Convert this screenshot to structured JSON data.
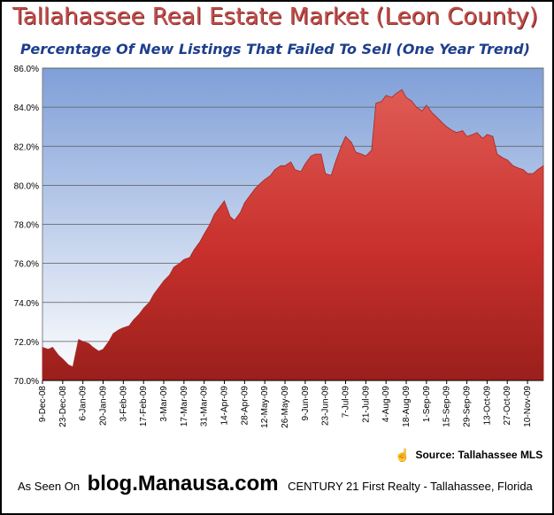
{
  "title": "Tallahassee Real Estate Market (Leon County)",
  "subtitle": "Percentage Of New Listings That Failed To Sell (One Year Trend)",
  "source": {
    "icon": "hand-pointer-icon",
    "text": "Source: Tallahassee MLS"
  },
  "footer": {
    "as_seen": "As Seen On",
    "blog": "blog.Manausa.com",
    "company": "CENTURY 21 First Realty - Tallahassee, Florida"
  },
  "colors": {
    "title": "#c0504d",
    "subtitle": "#1f3e8c",
    "area": "#c8302c",
    "plot_top": "#7f9fd8",
    "plot_bottom": "#ffffff"
  },
  "chart_data": {
    "type": "area",
    "title": "Percentage Of New Listings That Failed To Sell (One Year Trend)",
    "xlabel": "",
    "ylabel": "",
    "ylim": [
      70,
      86
    ],
    "y_ticks": [
      "70.0%",
      "72.0%",
      "74.0%",
      "76.0%",
      "78.0%",
      "80.0%",
      "82.0%",
      "84.0%",
      "86.0%"
    ],
    "grid": true,
    "legend": "none",
    "x_tick_labels": [
      "9-Dec-08",
      "23-Dec-08",
      "6-Jan-09",
      "20-Jan-09",
      "3-Feb-09",
      "17-Feb-09",
      "3-Mar-09",
      "17-Mar-09",
      "31-Mar-09",
      "14-Apr-09",
      "28-Apr-09",
      "12-May-09",
      "26-May-09",
      "9-Jun-09",
      "23-Jun-09",
      "7-Jul-09",
      "21-Jul-09",
      "4-Aug-09",
      "18-Aug-09",
      "1-Sep-09",
      "15-Sep-09",
      "29-Sep-09",
      "13-Oct-09",
      "27-Oct-09",
      "10-Nov-09"
    ],
    "x": [
      "2008-12-09",
      "2008-12-13",
      "2008-12-16",
      "2008-12-20",
      "2008-12-23",
      "2008-12-27",
      "2008-12-30",
      "2009-01-03",
      "2009-01-06",
      "2009-01-10",
      "2009-01-13",
      "2009-01-17",
      "2009-01-20",
      "2009-01-24",
      "2009-01-27",
      "2009-01-31",
      "2009-02-03",
      "2009-02-07",
      "2009-02-10",
      "2009-02-14",
      "2009-02-17",
      "2009-02-21",
      "2009-02-24",
      "2009-02-28",
      "2009-03-03",
      "2009-03-07",
      "2009-03-10",
      "2009-03-14",
      "2009-03-17",
      "2009-03-21",
      "2009-03-24",
      "2009-03-28",
      "2009-03-31",
      "2009-04-04",
      "2009-04-07",
      "2009-04-11",
      "2009-04-14",
      "2009-04-18",
      "2009-04-21",
      "2009-04-25",
      "2009-04-28",
      "2009-05-02",
      "2009-05-05",
      "2009-05-09",
      "2009-05-12",
      "2009-05-16",
      "2009-05-19",
      "2009-05-23",
      "2009-05-26",
      "2009-05-30",
      "2009-06-02",
      "2009-06-06",
      "2009-06-09",
      "2009-06-13",
      "2009-06-16",
      "2009-06-20",
      "2009-06-23",
      "2009-06-27",
      "2009-06-30",
      "2009-07-04",
      "2009-07-07",
      "2009-07-11",
      "2009-07-14",
      "2009-07-18",
      "2009-07-21",
      "2009-07-25",
      "2009-07-28",
      "2009-08-01",
      "2009-08-04",
      "2009-08-08",
      "2009-08-11",
      "2009-08-15",
      "2009-08-18",
      "2009-08-22",
      "2009-08-25",
      "2009-08-29",
      "2009-09-01",
      "2009-09-05",
      "2009-09-08",
      "2009-09-12",
      "2009-09-15",
      "2009-09-19",
      "2009-09-22",
      "2009-09-26",
      "2009-09-29",
      "2009-10-03",
      "2009-10-06",
      "2009-10-10",
      "2009-10-13",
      "2009-10-17",
      "2009-10-20",
      "2009-10-24",
      "2009-10-27",
      "2009-10-31",
      "2009-11-03",
      "2009-11-07",
      "2009-11-10",
      "2009-11-14",
      "2009-11-17",
      "2009-11-21"
    ],
    "values": [
      71.7,
      71.6,
      71.7,
      71.3,
      71.1,
      70.8,
      70.7,
      72.1,
      72.0,
      71.9,
      71.7,
      71.5,
      71.6,
      72.0,
      72.4,
      72.6,
      72.7,
      72.8,
      73.1,
      73.4,
      73.7,
      74.0,
      74.4,
      74.8,
      75.1,
      75.4,
      75.8,
      76.0,
      76.2,
      76.3,
      76.7,
      77.1,
      77.5,
      78.0,
      78.5,
      78.9,
      79.2,
      78.4,
      78.2,
      78.6,
      79.1,
      79.5,
      79.8,
      80.1,
      80.3,
      80.5,
      80.8,
      81.0,
      81.0,
      81.2,
      80.8,
      80.7,
      81.1,
      81.5,
      81.6,
      81.6,
      80.6,
      80.5,
      81.2,
      82.0,
      82.5,
      82.2,
      81.7,
      81.6,
      81.5,
      81.8,
      84.2,
      84.3,
      84.6,
      84.5,
      84.7,
      84.9,
      84.5,
      84.3,
      84.0,
      83.8,
      84.1,
      83.7,
      83.5,
      83.2,
      83.0,
      82.8,
      82.7,
      82.8,
      82.5,
      82.6,
      82.7,
      82.4,
      82.6,
      82.5,
      81.6,
      81.4,
      81.3,
      81.0,
      80.9,
      80.8,
      80.6,
      80.6,
      80.8,
      81.0
    ]
  }
}
